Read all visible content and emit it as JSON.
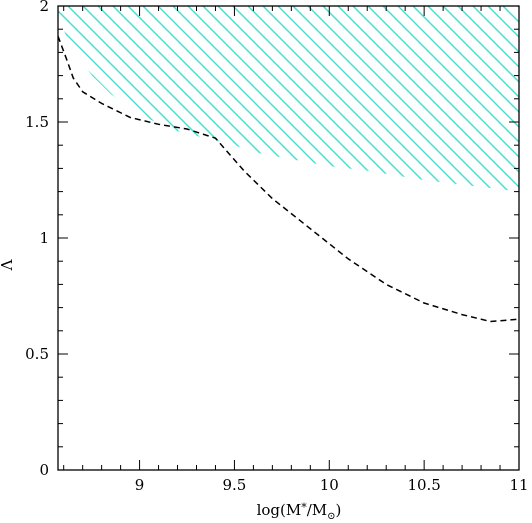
{
  "chart_data": {
    "type": "line",
    "title": "",
    "xlabel": "log(M*/M⊙)",
    "ylabel": "Λ",
    "xlim": [
      8.57,
      11.0
    ],
    "ylim": [
      0,
      2
    ],
    "x_major_ticks": [
      9,
      9.5,
      10,
      10.5,
      11
    ],
    "x_tick_labels": [
      "9",
      "9.5",
      "10",
      "10.5",
      "11"
    ],
    "y_major_ticks": [
      0,
      0.5,
      1,
      1.5,
      2
    ],
    "y_tick_labels": [
      "0",
      "0.5",
      "1",
      "1.5",
      "2"
    ],
    "grid": false,
    "series": [
      {
        "style": "dashed",
        "color": "#000000",
        "x": [
          8.57,
          8.62,
          8.65,
          8.7,
          8.8,
          8.95,
          9.1,
          9.25,
          9.4,
          9.55,
          9.7,
          9.9,
          10.1,
          10.3,
          10.5,
          10.7,
          10.85,
          11.0
        ],
        "y": [
          1.87,
          1.76,
          1.69,
          1.63,
          1.58,
          1.52,
          1.49,
          1.47,
          1.43,
          1.29,
          1.17,
          1.04,
          0.91,
          0.8,
          0.72,
          0.67,
          0.64,
          0.65
        ]
      }
    ],
    "shaded_region": {
      "pattern": "diagonal-hatch",
      "color": "#40e0d0",
      "upper_y": 2.0,
      "lower_boundary": {
        "x": [
          8.57,
          8.62,
          8.68,
          8.75,
          8.85,
          9.0,
          9.2,
          9.4,
          9.5,
          9.6,
          9.8,
          10.0,
          10.2,
          10.5,
          11.0
        ],
        "y": [
          1.95,
          1.86,
          1.78,
          1.7,
          1.62,
          1.53,
          1.46,
          1.42,
          1.4,
          1.37,
          1.34,
          1.31,
          1.29,
          1.25,
          1.2
        ]
      }
    }
  }
}
